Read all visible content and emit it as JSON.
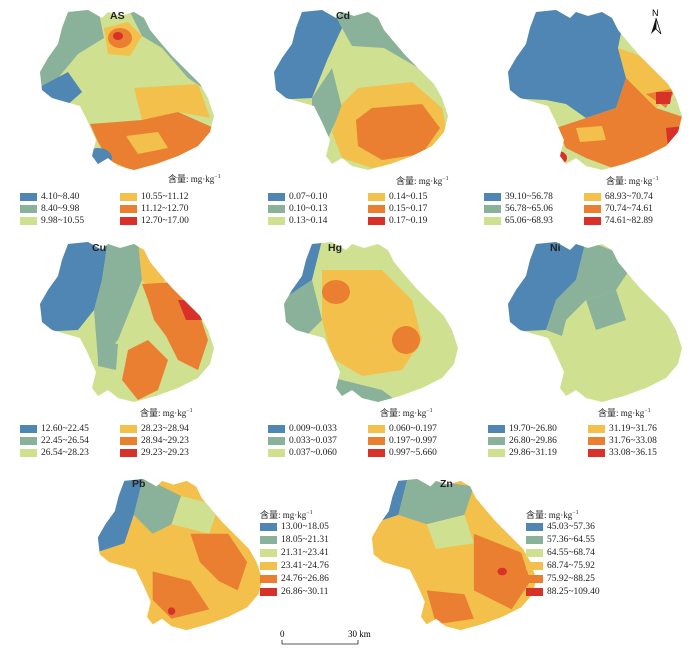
{
  "unit_label": "含量: mg·kg",
  "unit_sup": "−1",
  "north_label": "N",
  "scale": {
    "start": "0",
    "end": "30 km"
  },
  "colors": [
    "#4f86b4",
    "#8ab19a",
    "#cfe090",
    "#f3c04c",
    "#ea7f31",
    "#d7312a"
  ],
  "panels": [
    {
      "title": "AS",
      "legend": [
        "4.10~8.40",
        "8.40~9.98",
        "9.98~10.55",
        "10.55~11.12",
        "11.12~12.70",
        "12.70~17.00"
      ]
    },
    {
      "title": "Cd",
      "legend": [
        "0.07~0.10",
        "0.10~0.13",
        "0.13~0.14",
        "0.14~0.15",
        "0.15~0.17",
        "0.17~0.19"
      ]
    },
    {
      "title": "",
      "legend": [
        "39.10~56.78",
        "56.78~65.06",
        "65.06~68.93",
        "68.93~70.74",
        "70.74~74.61",
        "74.61~82.89"
      ]
    },
    {
      "title": "Cu",
      "legend": [
        "12.60~22.45",
        "22.45~26.54",
        "26.54~28.23",
        "28.23~28.94",
        "28.94~29.23",
        "29.23~29.23"
      ]
    },
    {
      "title": "Hg",
      "legend": [
        "0.009~0.033",
        "0.033~0.037",
        "0.037~0.060",
        "0.060~0.197",
        "0.197~0.997",
        "0.997~5.660"
      ]
    },
    {
      "title": "Ni",
      "legend": [
        "19.70~26.80",
        "26.80~29.86",
        "29.86~31.19",
        "31.19~31.76",
        "31.76~33.08",
        "33.08~36.15"
      ]
    },
    {
      "title": "Pb",
      "legend": [
        "13.00~18.05",
        "18.05~21.31",
        "21.31~23.41",
        "23.41~24.76",
        "24.76~26.86",
        "26.86~30.11"
      ]
    },
    {
      "title": "Zn",
      "legend": [
        "45.03~57.36",
        "57.36~64.55",
        "64.55~68.74",
        "68.74~75.92",
        "75.92~88.25",
        "88.25~109.40"
      ]
    }
  ]
}
